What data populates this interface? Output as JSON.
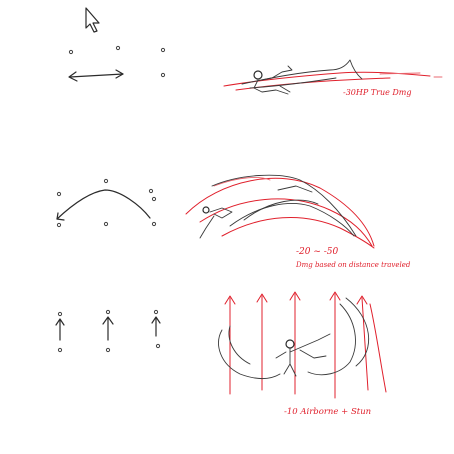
{
  "colors": {
    "ink": "#2b2b2b",
    "annotation": "#e0202c"
  },
  "cursor": {
    "icon": "arrow-cursor-icon"
  },
  "skills": [
    {
      "id": "dash",
      "note": "-30HP True Dmg"
    },
    {
      "id": "arc-sweep",
      "note_value": "-20 ~ -50",
      "note_desc": "Dmg based on distance traveled"
    },
    {
      "id": "uplift",
      "note": "-10 Airborne + Stun"
    }
  ]
}
